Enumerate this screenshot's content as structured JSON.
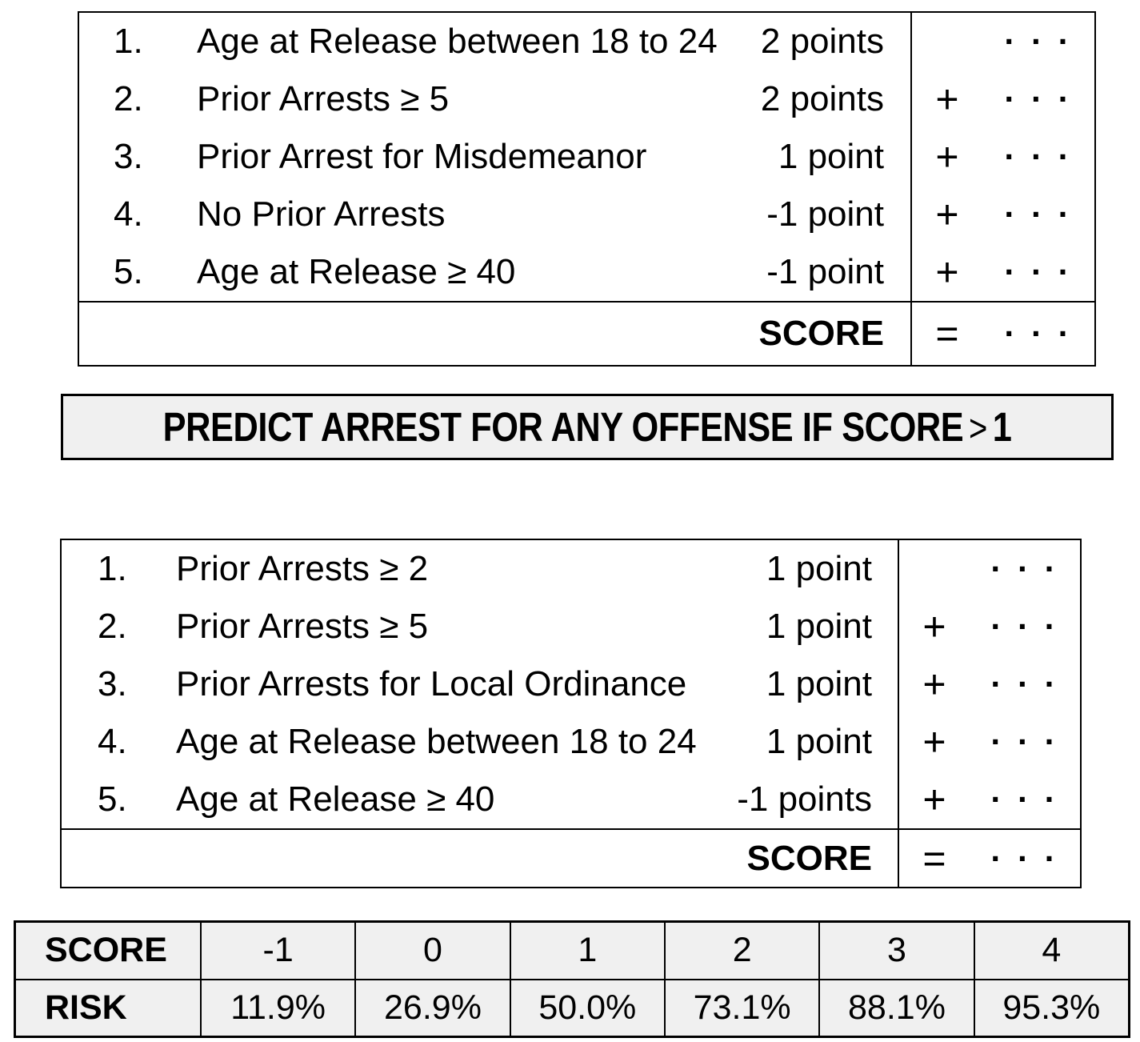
{
  "model_top": {
    "items": [
      {
        "num": "1.",
        "label": "Age at Release between 18 to 24",
        "points": "2 points",
        "op": "",
        "dots": "· · ·"
      },
      {
        "num": "2.",
        "label": "Prior Arrests ≥ 5",
        "points": "2 points",
        "op": "+",
        "dots": "· · ·"
      },
      {
        "num": "3.",
        "label": "Prior Arrest for Misdemeanor",
        "points": "1 point",
        "op": "+",
        "dots": "· · ·"
      },
      {
        "num": "4.",
        "label": "No Prior Arrests",
        "points": "-1 point",
        "op": "+",
        "dots": "· · ·"
      },
      {
        "num": "5.",
        "label": "Age at Release ≥ 40",
        "points": "-1 point",
        "op": "+",
        "dots": "· · ·"
      }
    ],
    "score": {
      "label": "SCORE",
      "op": "=",
      "dots": "· · ·"
    }
  },
  "banner": {
    "text": "PREDICT ARREST FOR ANY OFFENSE IF SCORE",
    "operator": ">",
    "threshold": "1"
  },
  "model_bottom": {
    "items": [
      {
        "num": "1.",
        "label": "Prior Arrests ≥ 2",
        "points": "1 point",
        "op": "",
        "dots": "· · ·"
      },
      {
        "num": "2.",
        "label": "Prior Arrests ≥ 5",
        "points": "1 point",
        "op": "+",
        "dots": "· · ·"
      },
      {
        "num": "3.",
        "label": "Prior Arrests for Local Ordinance",
        "points": "1 point",
        "op": "+",
        "dots": "· · ·"
      },
      {
        "num": "4.",
        "label": "Age at Release between 18 to 24",
        "points": "1 point",
        "op": "+",
        "dots": "· · ·"
      },
      {
        "num": "5.",
        "label": "Age at Release ≥ 40",
        "points": "-1 points",
        "op": "+",
        "dots": "· · ·"
      }
    ],
    "score": {
      "label": "SCORE",
      "op": "=",
      "dots": "· · ·"
    }
  },
  "risk_table": {
    "row_headers": [
      "SCORE",
      "RISK"
    ],
    "scores": [
      "-1",
      "0",
      "1",
      "2",
      "3",
      "4"
    ],
    "risks": [
      "11.9%",
      "26.9%",
      "50.0%",
      "73.1%",
      "88.1%",
      "95.3%"
    ]
  },
  "colors": {
    "highlight_bg": "#f0f0f0",
    "border": "#000000",
    "text": "#000000",
    "background": "#ffffff"
  }
}
